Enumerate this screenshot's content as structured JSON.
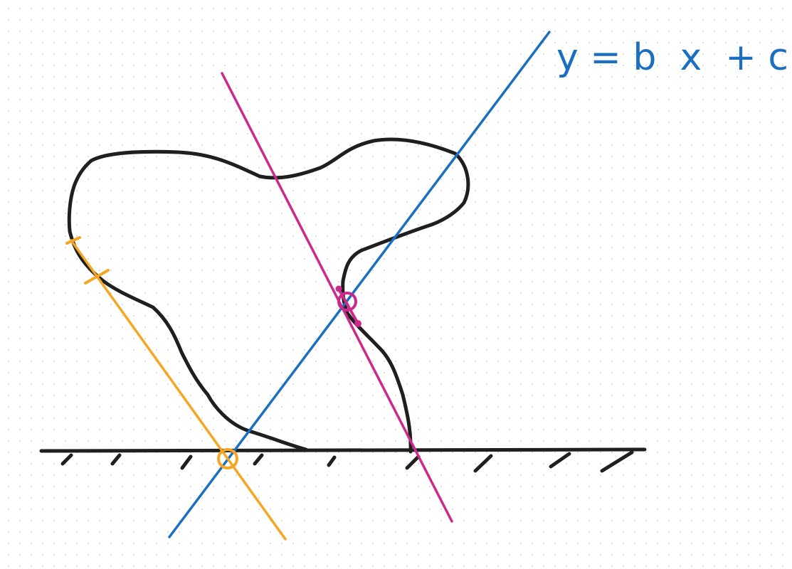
{
  "equation": {
    "text": "y = b  x  + c"
  },
  "colors": {
    "shape": "#1f1f1f",
    "ground": "#1f1f1f",
    "blue_line": "#1b6fc0",
    "magenta_line": "#cc2a8a",
    "orange_line": "#f5a623"
  },
  "elements": {
    "shape": "closed-freeform-shape",
    "ground": "hatched-ground-line",
    "blue_line": "diagonal-line-positive-slope",
    "magenta_line": "diagonal-line-negative-slope",
    "orange_line": "diagonal-line-negative-slope",
    "markers": [
      "orange-circle-intersection",
      "magenta-circle-intersection",
      "orange-tick-marks",
      "magenta-dots"
    ]
  }
}
